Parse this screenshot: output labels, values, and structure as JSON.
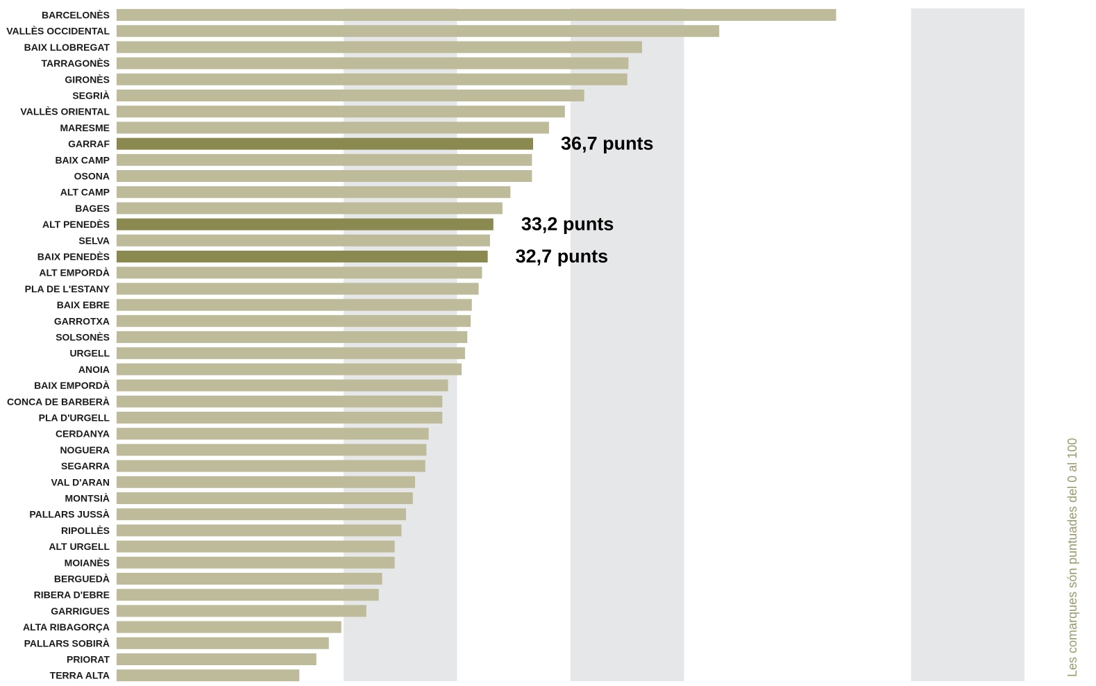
{
  "chart_data": {
    "type": "bar",
    "orientation": "horizontal",
    "categories": [
      "BARCELONÈS",
      "VALLÈS OCCIDENTAL",
      "BAIX LLOBREGAT",
      "TARRAGONÈS",
      "GIRONÈS",
      "SEGRIÀ",
      "VALLÈS ORIENTAL",
      "MARESME",
      "GARRAF",
      "BAIX CAMP",
      "OSONA",
      "ALT CAMP",
      "BAGES",
      "ALT PENEDÈS",
      "SELVA",
      "BAIX PENEDÈS",
      "ALT EMPORDÀ",
      "PLA DE L'ESTANY",
      "BAIX EBRE",
      "GARROTXA",
      "SOLSONÈS",
      "URGELL",
      "ANOIA",
      "BAIX EMPORDÀ",
      "CONCA DE BARBERÀ",
      "PLA D'URGELL",
      "CERDANYA",
      "NOGUERA",
      "SEGARRA",
      "VAL D'ARAN",
      "MONTSIÀ",
      "PALLARS JUSSÀ",
      "RIPOLLÈS",
      "ALT URGELL",
      "MOIANÈS",
      "BERGUEDÀ",
      "RIBERA D'EBRE",
      "GARRIGUES",
      "ALTA RIBAGORÇA",
      "PALLARS SOBIRÀ",
      "PRIORAT",
      "TERRA ALTA"
    ],
    "values": [
      63.4,
      53.1,
      46.3,
      45.1,
      45.0,
      41.2,
      39.5,
      38.1,
      36.7,
      36.6,
      36.6,
      34.7,
      34.0,
      33.2,
      32.9,
      32.7,
      32.2,
      31.9,
      31.3,
      31.2,
      30.9,
      30.7,
      30.4,
      29.2,
      28.7,
      28.7,
      27.5,
      27.3,
      27.2,
      26.3,
      26.1,
      25.5,
      25.1,
      24.5,
      24.5,
      23.4,
      23.1,
      22.0,
      19.8,
      18.7,
      17.6,
      16.1
    ],
    "highlighted": [
      "GARRAF",
      "ALT PENEDÈS",
      "BAIX PENEDÈS"
    ],
    "annotations": [
      {
        "category": "GARRAF",
        "text": "36,7 punts"
      },
      {
        "category": "ALT PENEDÈS",
        "text": "33,2 punts"
      },
      {
        "category": "BAIX PENEDÈS",
        "text": "32,7 punts"
      }
    ],
    "xlim": [
      0,
      80
    ],
    "bands": [
      [
        20,
        30
      ],
      [
        40,
        50
      ],
      [
        70,
        80
      ]
    ],
    "side_note": "Les comarques són puntuades del 0 al 100",
    "colors": {
      "bar": "#bdbb9a",
      "highlight": "#8a8a50",
      "band": "#e6e7e9",
      "note": "#9a9a6a"
    }
  }
}
